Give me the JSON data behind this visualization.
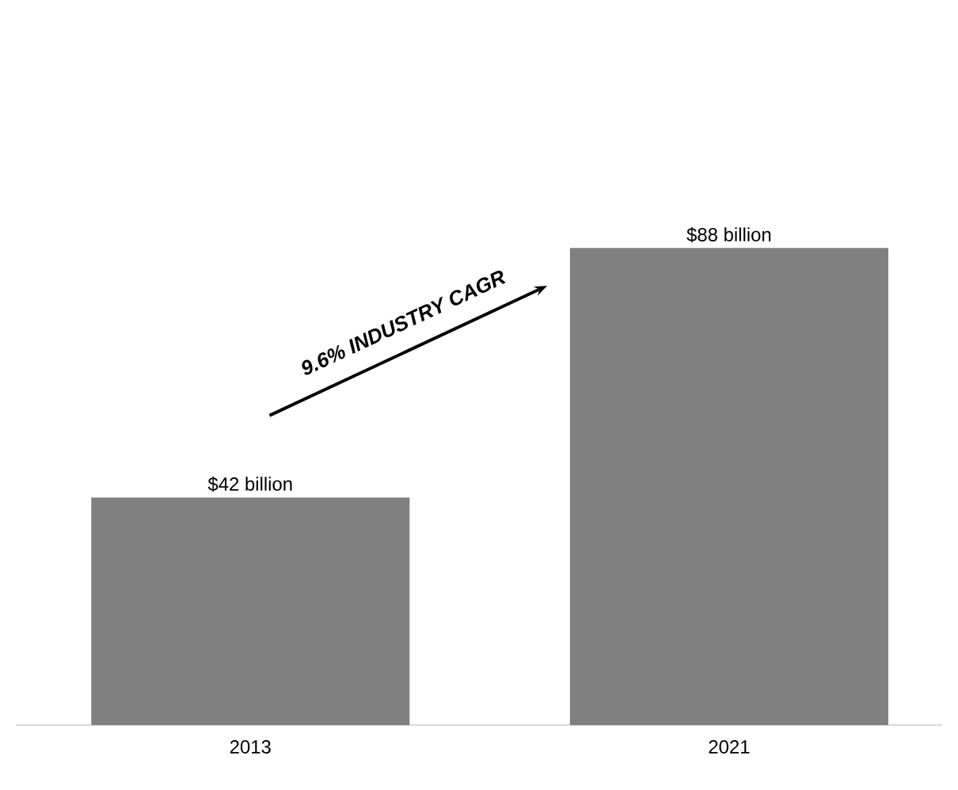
{
  "chart_data": {
    "type": "bar",
    "categories": [
      "2013",
      "2021"
    ],
    "values": [
      42,
      88
    ],
    "color": "#808080",
    "value_labels": [
      "$42 billion",
      "$88 billion"
    ],
    "annotations": [
      "9.6% INDUSTRY CAGR"
    ]
  }
}
